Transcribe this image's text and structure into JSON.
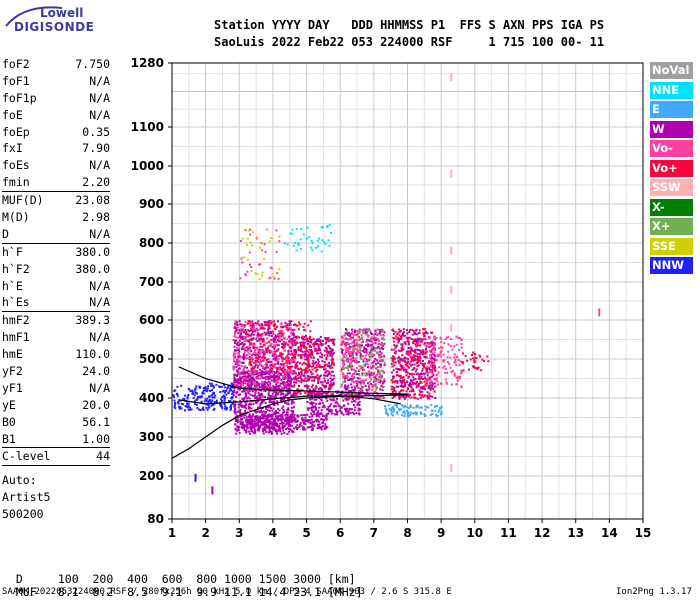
{
  "logo": {
    "top": "Lowell",
    "bottom": "DIGISONDE"
  },
  "header": {
    "line1": "Station YYYY DAY   DDD HHMMSS P1  FFS S AXN PPS IGA PS",
    "line2": "SaoLuis 2022 Feb22 053 224000 RSF     1 715 100 00- 11"
  },
  "params": [
    {
      "label": "foF2",
      "value": "7.750"
    },
    {
      "label": "foF1",
      "value": "N/A"
    },
    {
      "label": "foF1p",
      "value": "N/A"
    },
    {
      "label": "foE",
      "value": "N/A"
    },
    {
      "label": "foEp",
      "value": "0.35"
    },
    {
      "label": "fxI",
      "value": "7.90"
    },
    {
      "label": "foEs",
      "value": "N/A"
    },
    {
      "label": "fmin",
      "value": "2.20"
    },
    {
      "label": "MUF(D)",
      "value": "23.08"
    },
    {
      "label": "M(D)",
      "value": "2.98"
    },
    {
      "label": "D",
      "value": "N/A"
    },
    {
      "label": "h`F",
      "value": "380.0"
    },
    {
      "label": "h`F2",
      "value": "380.0"
    },
    {
      "label": "h`E",
      "value": "N/A"
    },
    {
      "label": "h`Es",
      "value": "N/A"
    },
    {
      "label": "hmF2",
      "value": "389.3"
    },
    {
      "label": "hmF1",
      "value": "N/A"
    },
    {
      "label": "hmE",
      "value": "110.0"
    },
    {
      "label": "yF2",
      "value": "24.0"
    },
    {
      "label": "yF1",
      "value": "N/A"
    },
    {
      "label": "yE",
      "value": "20.0"
    },
    {
      "label": "B0",
      "value": "56.1"
    },
    {
      "label": "B1",
      "value": "1.00"
    },
    {
      "label": "C-level",
      "value": "44"
    }
  ],
  "auto": [
    "Auto:",
    "Artist5",
    "500200"
  ],
  "legend": [
    {
      "label": "NoVal",
      "color": "#a0a0a0"
    },
    {
      "label": "NNE",
      "color": "#00e0ff"
    },
    {
      "label": "E",
      "color": "#40a8ff"
    },
    {
      "label": "W",
      "color": "#b000b0"
    },
    {
      "label": "Vo-",
      "color": "#ff40a0"
    },
    {
      "label": "Vo+",
      "color": "#ff0040"
    },
    {
      "label": "SSW",
      "color": "#ffb0b0"
    },
    {
      "label": "X-",
      "color": "#008000"
    },
    {
      "label": "X+",
      "color": "#70b050"
    },
    {
      "label": "SSE",
      "color": "#d0d000"
    },
    {
      "label": "NNW",
      "color": "#2020ff"
    }
  ],
  "table": {
    "d_label": "D",
    "d_values": "100  200  400  600  800 1000 1500 3000 [km]",
    "muf_label": "MUF",
    "muf_values": "8.1  8.2  8.5  9.1  9.9 11.1 14.4 23.1 [MHz]"
  },
  "footer": {
    "left": "SAA0K_2022053224000.RSF / 280fx256h 50 kHz 5.0 km / DPS-4 SAA0K 903 / 2.6 S 315.8 E",
    "right": "Ion2Png 1.3.17"
  },
  "chart_data": {
    "type": "scatter",
    "x_ticks": [
      1,
      2,
      3,
      4,
      5,
      6,
      7,
      8,
      9,
      10,
      11,
      12,
      13,
      14,
      15
    ],
    "y_ticks": [
      80,
      200,
      300,
      400,
      500,
      600,
      700,
      800,
      900,
      1000,
      1100,
      1280
    ],
    "xlim": [
      1,
      15
    ],
    "grid": true,
    "clusters": [
      {
        "x": [
          2.8,
          4.6
        ],
        "y": [
          310,
          470
        ],
        "color": "#b000b0",
        "density": 0.75
      },
      {
        "x": [
          3.0,
          5.6
        ],
        "y": [
          320,
          360
        ],
        "color": "#b000b0",
        "density": 0.9
      },
      {
        "x": [
          5.0,
          6.6
        ],
        "y": [
          360,
          420
        ],
        "color": "#b000b0",
        "density": 0.6
      },
      {
        "x": [
          1.0,
          2.8
        ],
        "y": [
          370,
          440
        ],
        "color": "#2020ff",
        "density": 0.5
      },
      {
        "x": [
          2.8,
          4.6
        ],
        "y": [
          420,
          600
        ],
        "color": "#b000b0",
        "density": 0.55
      },
      {
        "x": [
          2.8,
          4.6
        ],
        "y": [
          420,
          600
        ],
        "color": "#ff40a0",
        "density": 0.25
      },
      {
        "x": [
          3.2,
          5.2
        ],
        "y": [
          470,
          600
        ],
        "color": "#ff0040",
        "density": 0.2
      },
      {
        "x": [
          4.6,
          5.8
        ],
        "y": [
          410,
          560
        ],
        "color": "#b000b0",
        "density": 0.5
      },
      {
        "x": [
          4.6,
          5.8
        ],
        "y": [
          410,
          560
        ],
        "color": "#ff0040",
        "density": 0.25
      },
      {
        "x": [
          6.0,
          7.3
        ],
        "y": [
          400,
          580
        ],
        "color": "#b000b0",
        "density": 0.45
      },
      {
        "x": [
          6.0,
          7.3
        ],
        "y": [
          400,
          580
        ],
        "color": "#ff40a0",
        "density": 0.3
      },
      {
        "x": [
          6.0,
          7.3
        ],
        "y": [
          400,
          580
        ],
        "color": "#70b050",
        "density": 0.1
      },
      {
        "x": [
          7.5,
          8.8
        ],
        "y": [
          400,
          580
        ],
        "color": "#b000b0",
        "density": 0.45
      },
      {
        "x": [
          7.5,
          8.8
        ],
        "y": [
          400,
          580
        ],
        "color": "#ff0040",
        "density": 0.3
      },
      {
        "x": [
          8.5,
          9.6
        ],
        "y": [
          430,
          560
        ],
        "color": "#ff40a0",
        "density": 0.3
      },
      {
        "x": [
          7.3,
          9.0
        ],
        "y": [
          355,
          385
        ],
        "color": "#40a8ff",
        "density": 0.6
      },
      {
        "x": [
          9.6,
          10.4
        ],
        "y": [
          470,
          520
        ],
        "color": "#ff0040",
        "density": 0.25
      },
      {
        "x": [
          3.0,
          4.2
        ],
        "y": [
          710,
          840
        ],
        "color": "#ff40a0",
        "density": 0.06
      },
      {
        "x": [
          3.0,
          4.2
        ],
        "y": [
          710,
          840
        ],
        "color": "#d0d000",
        "density": 0.05
      },
      {
        "x": [
          4.3,
          5.7
        ],
        "y": [
          780,
          850
        ],
        "color": "#00e0ff",
        "density": 0.12
      }
    ],
    "trace_curves": [
      {
        "x": [
          1.0,
          1.5,
          2.0,
          2.5,
          3.0,
          3.5,
          4.0,
          4.5,
          5.0,
          5.5,
          6.0,
          7.0,
          8.0
        ],
        "y": [
          245,
          270,
          300,
          330,
          355,
          370,
          385,
          395,
          400,
          402,
          404,
          406,
          408
        ]
      },
      {
        "x": [
          1.2,
          2.0,
          3.0,
          4.0,
          5.0,
          6.0,
          7.0,
          8.0
        ],
        "y": [
          480,
          450,
          425,
          420,
          418,
          415,
          412,
          410
        ]
      },
      {
        "x": [
          1.2,
          2.0,
          3.0,
          4.0,
          5.0,
          6.0,
          7.0,
          7.8
        ],
        "y": [
          395,
          385,
          390,
          398,
          405,
          406,
          398,
          385
        ]
      }
    ],
    "isolated_points": [
      {
        "x": 9.3,
        "y": 1240,
        "color": "#ffb0b0"
      },
      {
        "x": 9.3,
        "y": 980,
        "color": "#ffb0b0"
      },
      {
        "x": 9.3,
        "y": 780,
        "color": "#ffb0b0"
      },
      {
        "x": 9.3,
        "y": 680,
        "color": "#ffb0b0"
      },
      {
        "x": 9.3,
        "y": 580,
        "color": "#ffb0b0"
      },
      {
        "x": 9.3,
        "y": 220,
        "color": "#ffb0b0"
      },
      {
        "x": 13.7,
        "y": 620,
        "color": "#ff40a0"
      },
      {
        "x": 2.2,
        "y": 160,
        "color": "#b000b0"
      },
      {
        "x": 1.7,
        "y": 195,
        "color": "#2020ff"
      }
    ]
  }
}
